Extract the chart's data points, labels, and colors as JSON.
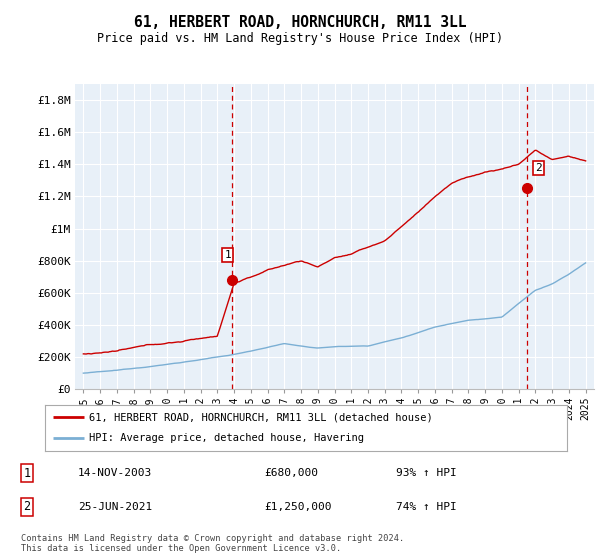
{
  "title": "61, HERBERT ROAD, HORNCHURCH, RM11 3LL",
  "subtitle": "Price paid vs. HM Land Registry's House Price Index (HPI)",
  "ylabel_ticks": [
    "£0",
    "£200K",
    "£400K",
    "£600K",
    "£800K",
    "£1M",
    "£1.2M",
    "£1.4M",
    "£1.6M",
    "£1.8M"
  ],
  "ytick_values": [
    0,
    200000,
    400000,
    600000,
    800000,
    1000000,
    1200000,
    1400000,
    1600000,
    1800000
  ],
  "ylim": [
    0,
    1900000
  ],
  "xlim_start": 1994.5,
  "xlim_end": 2025.5,
  "transaction1_x": 2003.87,
  "transaction1_y": 680000,
  "transaction2_x": 2021.48,
  "transaction2_y": 1250000,
  "legend_line1": "61, HERBERT ROAD, HORNCHURCH, RM11 3LL (detached house)",
  "legend_line2": "HPI: Average price, detached house, Havering",
  "footer": "Contains HM Land Registry data © Crown copyright and database right 2024.\nThis data is licensed under the Open Government Licence v3.0.",
  "line_color_red": "#cc0000",
  "line_color_blue": "#7bafd4",
  "bg_plot": "#e8f0f8",
  "background_color": "#ffffff",
  "dashed_color": "#cc0000",
  "grid_color": "#ffffff"
}
